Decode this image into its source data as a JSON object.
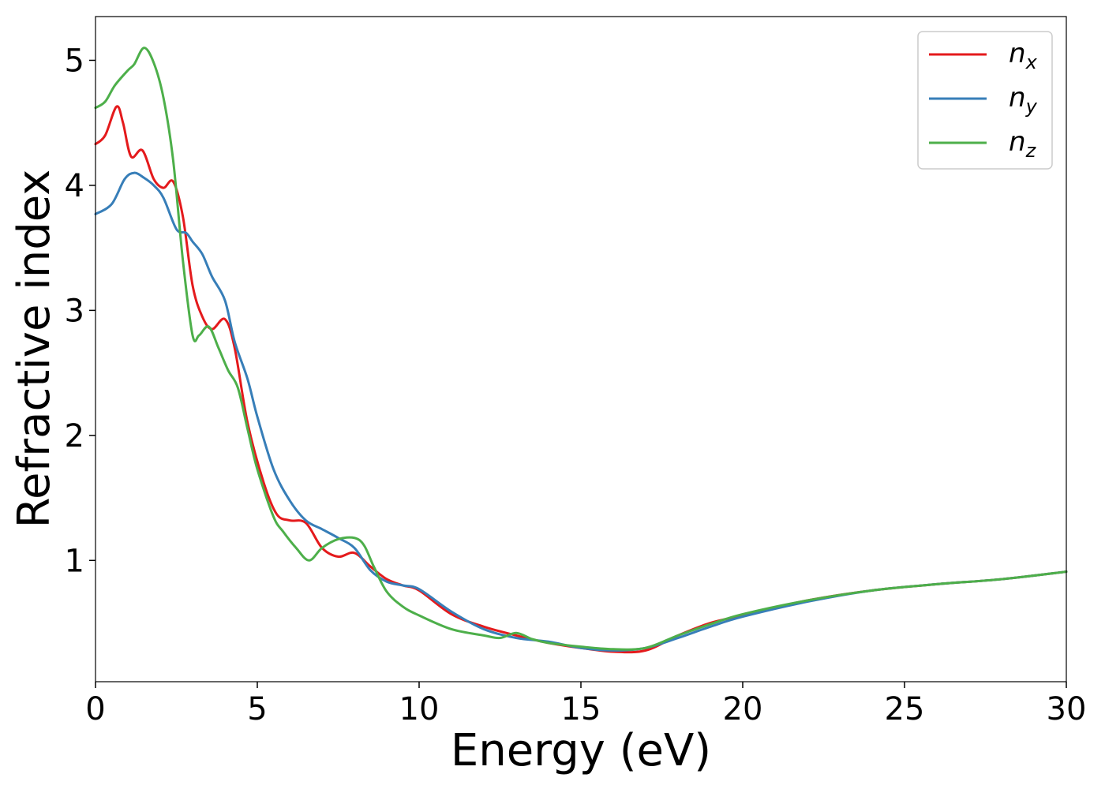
{
  "chart_data": {
    "type": "line",
    "xlabel": "Energy (eV)",
    "ylabel": "Refractive index",
    "xlim": [
      0,
      30
    ],
    "ylim": [
      0.03,
      5.35
    ],
    "xticks": [
      0,
      5,
      10,
      15,
      20,
      25,
      30
    ],
    "yticks": [
      1,
      2,
      3,
      4,
      5
    ],
    "grid": false,
    "legend": "top-right",
    "series": [
      {
        "name": "n",
        "subscript": "x",
        "color": "#e41a1c",
        "x": [
          0,
          0.3,
          0.65,
          0.85,
          1.1,
          1.45,
          1.8,
          2.1,
          2.4,
          2.7,
          3.0,
          3.3,
          3.6,
          4.0,
          4.3,
          4.7,
          5.2,
          5.6,
          6.0,
          6.5,
          7.0,
          7.5,
          8.0,
          8.5,
          9.0,
          9.5,
          10.0,
          11.0,
          12.0,
          13.0,
          14.0,
          15.0,
          16.0,
          17.0,
          18.0,
          19.0,
          20.0,
          22.0,
          24.0,
          26.0,
          28.0,
          30.0
        ],
        "y": [
          4.33,
          4.4,
          4.63,
          4.5,
          4.23,
          4.28,
          4.05,
          3.98,
          4.03,
          3.75,
          3.2,
          2.95,
          2.85,
          2.93,
          2.7,
          2.1,
          1.62,
          1.37,
          1.32,
          1.3,
          1.1,
          1.03,
          1.06,
          0.95,
          0.85,
          0.8,
          0.76,
          0.57,
          0.47,
          0.4,
          0.34,
          0.3,
          0.27,
          0.28,
          0.4,
          0.5,
          0.56,
          0.68,
          0.76,
          0.81,
          0.85,
          0.91
        ]
      },
      {
        "name": "n",
        "subscript": "y",
        "color": "#377eb8",
        "x": [
          0,
          0.5,
          0.9,
          1.2,
          1.5,
          1.8,
          2.1,
          2.5,
          2.8,
          3.0,
          3.3,
          3.6,
          4.0,
          4.3,
          4.7,
          5.0,
          5.5,
          6.0,
          6.5,
          7.0,
          7.5,
          8.0,
          8.5,
          9.0,
          9.5,
          10.0,
          11.0,
          12.0,
          13.0,
          14.0,
          15.0,
          16.0,
          17.0,
          18.0,
          19.0,
          20.0,
          22.0,
          24.0,
          26.0,
          28.0,
          30.0
        ],
        "y": [
          3.77,
          3.85,
          4.05,
          4.1,
          4.06,
          4.0,
          3.9,
          3.65,
          3.62,
          3.55,
          3.45,
          3.27,
          3.08,
          2.75,
          2.45,
          2.15,
          1.73,
          1.48,
          1.32,
          1.25,
          1.18,
          1.1,
          0.92,
          0.83,
          0.8,
          0.77,
          0.59,
          0.45,
          0.38,
          0.35,
          0.3,
          0.28,
          0.3,
          0.38,
          0.47,
          0.55,
          0.67,
          0.76,
          0.81,
          0.85,
          0.91
        ]
      },
      {
        "name": "n",
        "subscript": "z",
        "color": "#4daf4a",
        "x": [
          0,
          0.3,
          0.6,
          1.0,
          1.2,
          1.5,
          1.8,
          2.1,
          2.4,
          2.7,
          3.0,
          3.2,
          3.5,
          3.8,
          4.1,
          4.4,
          4.7,
          5.0,
          5.5,
          5.8,
          6.2,
          6.6,
          7.0,
          7.5,
          8.0,
          8.3,
          8.6,
          9.0,
          9.5,
          10.0,
          11.0,
          12.0,
          12.5,
          13.0,
          13.5,
          14.0,
          15.0,
          16.0,
          17.0,
          18.0,
          19.0,
          20.0,
          22.0,
          24.0,
          26.0,
          28.0,
          30.0
        ],
        "y": [
          4.62,
          4.67,
          4.8,
          4.92,
          4.97,
          5.1,
          4.98,
          4.7,
          4.2,
          3.4,
          2.8,
          2.8,
          2.87,
          2.7,
          2.52,
          2.38,
          2.05,
          1.73,
          1.35,
          1.23,
          1.1,
          1.0,
          1.1,
          1.17,
          1.18,
          1.12,
          0.95,
          0.75,
          0.63,
          0.56,
          0.45,
          0.4,
          0.38,
          0.42,
          0.37,
          0.34,
          0.31,
          0.29,
          0.3,
          0.4,
          0.49,
          0.57,
          0.68,
          0.76,
          0.81,
          0.85,
          0.91
        ]
      }
    ]
  }
}
